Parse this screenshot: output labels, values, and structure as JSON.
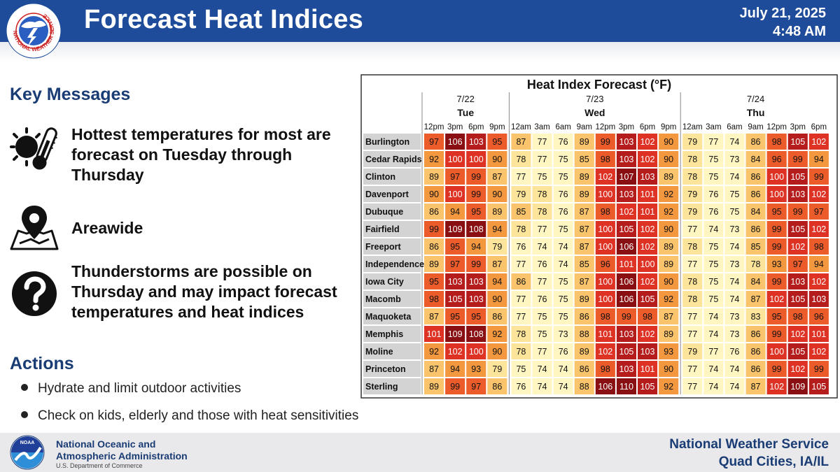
{
  "header": {
    "title": "Forecast Heat Indices",
    "date": "July 21, 2025",
    "time": "4:48 AM",
    "logo_text": "NATIONAL WEATHER SERVICE"
  },
  "key_messages": {
    "title": "Key Messages",
    "items": [
      {
        "icon": "hot-thermometer-icon",
        "text": "Hottest temperatures for most are forecast on Tuesday through Thursday"
      },
      {
        "icon": "map-pin-icon",
        "text": "Areawide"
      },
      {
        "icon": "question-mark-icon",
        "text": "Thunderstorms are possible on Thursday and may impact forecast temperatures and heat indices"
      }
    ]
  },
  "actions": {
    "title": "Actions",
    "items": [
      "Hydrate and limit outdoor activities",
      "Check on kids, elderly and those with heat sensitivities"
    ]
  },
  "footer": {
    "noaa_logo_text": "NOAA",
    "noaa_line1": "National Oceanic and",
    "noaa_line2": "Atmospheric Administration",
    "noaa_dept": "U.S. Department of Commerce",
    "nws_line1": "National Weather Service",
    "nws_line2": "Quad Cities, IA/IL"
  },
  "chart_data": {
    "type": "table",
    "title": "Heat Index Forecast (°F)",
    "days": [
      {
        "date": "7/22",
        "day": "Tue",
        "hours": [
          "12pm",
          "3pm",
          "6pm",
          "9pm"
        ]
      },
      {
        "date": "7/23",
        "day": "Wed",
        "hours": [
          "12am",
          "3am",
          "6am",
          "9am",
          "12pm",
          "3pm",
          "6pm",
          "9pm"
        ]
      },
      {
        "date": "7/24",
        "day": "Thu",
        "hours": [
          "12am",
          "3am",
          "6am",
          "9am",
          "12pm",
          "3pm",
          "6pm"
        ]
      }
    ],
    "rows": [
      {
        "location": "Burlington",
        "values": [
          97,
          106,
          103,
          95,
          87,
          77,
          76,
          89,
          99,
          103,
          102,
          90,
          79,
          77,
          74,
          86,
          98,
          105,
          102
        ]
      },
      {
        "location": "Cedar Rapids",
        "values": [
          92,
          100,
          100,
          90,
          78,
          77,
          75,
          85,
          98,
          103,
          102,
          90,
          78,
          75,
          73,
          84,
          96,
          99,
          94
        ]
      },
      {
        "location": "Clinton",
        "values": [
          89,
          97,
          99,
          87,
          77,
          75,
          75,
          89,
          102,
          107,
          103,
          89,
          78,
          75,
          74,
          86,
          100,
          105,
          99
        ]
      },
      {
        "location": "Davenport",
        "values": [
          90,
          100,
          99,
          90,
          79,
          78,
          76,
          89,
          100,
          103,
          101,
          92,
          79,
          76,
          75,
          86,
          100,
          103,
          102
        ]
      },
      {
        "location": "Dubuque",
        "values": [
          86,
          94,
          95,
          89,
          85,
          78,
          76,
          87,
          98,
          102,
          101,
          92,
          79,
          76,
          75,
          84,
          95,
          99,
          97
        ]
      },
      {
        "location": "Fairfield",
        "values": [
          99,
          109,
          108,
          94,
          78,
          77,
          75,
          87,
          100,
          105,
          102,
          90,
          77,
          74,
          73,
          86,
          99,
          105,
          102
        ]
      },
      {
        "location": "Freeport",
        "values": [
          86,
          95,
          94,
          79,
          76,
          74,
          74,
          87,
          100,
          106,
          102,
          89,
          78,
          75,
          74,
          85,
          99,
          102,
          98
        ]
      },
      {
        "location": "Independence",
        "values": [
          89,
          97,
          99,
          87,
          77,
          76,
          74,
          85,
          96,
          101,
          100,
          89,
          77,
          75,
          73,
          78,
          93,
          97,
          94
        ]
      },
      {
        "location": "Iowa City",
        "values": [
          95,
          103,
          103,
          94,
          86,
          77,
          75,
          87,
          100,
          106,
          102,
          90,
          78,
          75,
          74,
          84,
          99,
          103,
          102
        ]
      },
      {
        "location": "Macomb",
        "values": [
          98,
          105,
          103,
          90,
          77,
          76,
          75,
          89,
          100,
          106,
          105,
          92,
          78,
          75,
          74,
          87,
          102,
          105,
          103
        ]
      },
      {
        "location": "Maquoketa",
        "values": [
          87,
          95,
          95,
          86,
          77,
          75,
          75,
          86,
          98,
          99,
          98,
          87,
          77,
          74,
          73,
          83,
          95,
          98,
          96
        ]
      },
      {
        "location": "Memphis",
        "values": [
          101,
          109,
          108,
          92,
          78,
          75,
          73,
          88,
          101,
          103,
          102,
          89,
          77,
          74,
          73,
          86,
          99,
          102,
          101
        ]
      },
      {
        "location": "Moline",
        "values": [
          92,
          102,
          100,
          90,
          78,
          77,
          76,
          89,
          102,
          105,
          103,
          93,
          79,
          77,
          76,
          86,
          100,
          105,
          102
        ]
      },
      {
        "location": "Princeton",
        "values": [
          87,
          94,
          93,
          79,
          75,
          74,
          74,
          86,
          98,
          103,
          101,
          90,
          77,
          74,
          74,
          86,
          99,
          102,
          99
        ]
      },
      {
        "location": "Sterling",
        "values": [
          89,
          99,
          97,
          86,
          76,
          74,
          74,
          88,
          106,
          110,
          105,
          92,
          77,
          74,
          74,
          87,
          102,
          109,
          105
        ]
      }
    ],
    "color_scale": [
      "#fff6c2",
      "#fce59b",
      "#f9c46b",
      "#f3983f",
      "#ec5c2b",
      "#de3224",
      "#b51d1d",
      "#8a0f12"
    ]
  }
}
